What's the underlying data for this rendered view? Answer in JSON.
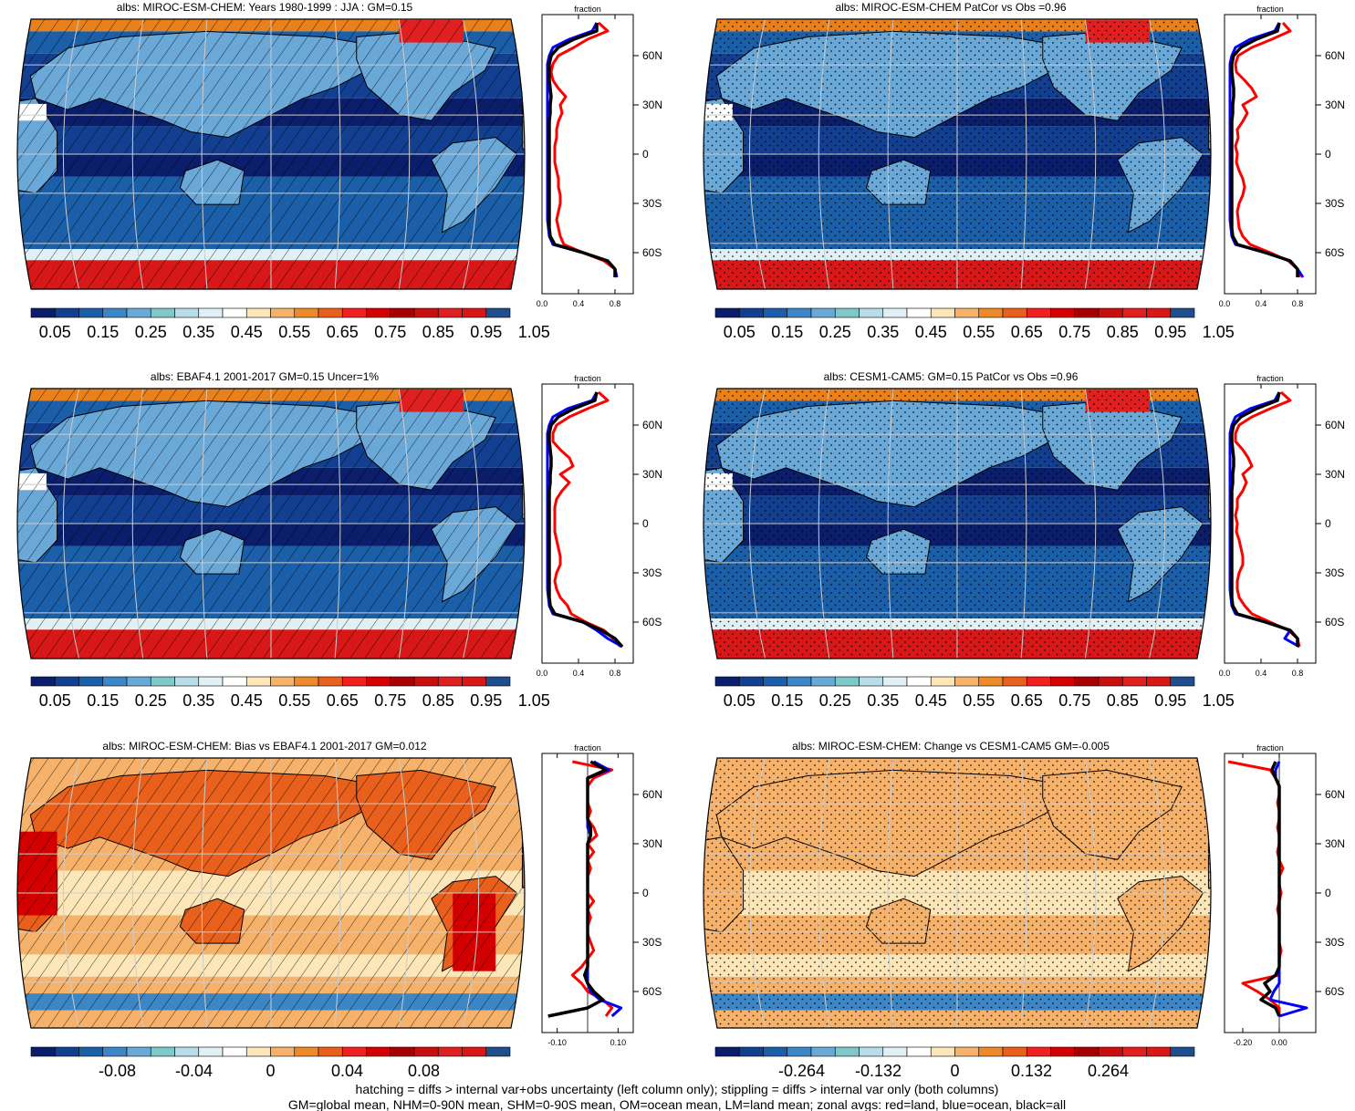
{
  "panels": [
    {
      "title": "albs: MIROC-ESM-CHEM: Years 1980-1999 : JJA : GM=0.15",
      "map_type": "albedo",
      "overlay": "hatch",
      "colorbar": {
        "type": "abs",
        "labels": [
          "0.05",
          "0.15",
          "0.25",
          "0.35",
          "0.45",
          "0.55",
          "0.65",
          "0.75",
          "0.85",
          "0.95",
          "1.05"
        ]
      }
    },
    {
      "title": "albs: MIROC-ESM-CHEM PatCor vs Obs =0.96",
      "map_type": "albedo",
      "overlay": "stipple",
      "colorbar": {
        "type": "abs",
        "labels": [
          "0.05",
          "0.15",
          "0.25",
          "0.35",
          "0.45",
          "0.55",
          "0.65",
          "0.75",
          "0.85",
          "0.95",
          "1.05"
        ]
      }
    },
    {
      "title": "albs: EBAF4.1 2001-2017 GM=0.15 Uncer=1%",
      "map_type": "albedo",
      "overlay": "hatch",
      "colorbar": {
        "type": "abs",
        "labels": [
          "0.05",
          "0.15",
          "0.25",
          "0.35",
          "0.45",
          "0.55",
          "0.65",
          "0.75",
          "0.85",
          "0.95",
          "1.05"
        ]
      }
    },
    {
      "title": "albs: CESM1-CAM5: GM=0.15 PatCor vs Obs =0.96",
      "map_type": "albedo",
      "overlay": "stipple",
      "colorbar": {
        "type": "abs",
        "labels": [
          "0.05",
          "0.15",
          "0.25",
          "0.35",
          "0.45",
          "0.55",
          "0.65",
          "0.75",
          "0.85",
          "0.95",
          "1.05"
        ]
      }
    },
    {
      "title": "albs: MIROC-ESM-CHEM: Bias vs EBAF4.1 2001-2017 GM=0.012",
      "map_type": "diff",
      "overlay": "hatch",
      "colorbar": {
        "type": "diff",
        "labels": [
          "-0.08",
          "-0.04",
          "0",
          "0.04",
          "0.08"
        ]
      }
    },
    {
      "title": "albs: MIROC-ESM-CHEM: Change vs CESM1-CAM5 GM=-0.005",
      "map_type": "diff",
      "overlay": "stipple",
      "colorbar": {
        "type": "diff",
        "labels": [
          "-0.264",
          "-0.132",
          "0",
          "0.132",
          "0.264"
        ]
      }
    }
  ],
  "latitude_labels": [
    "60N",
    "30N",
    "0",
    "30S",
    "60S"
  ],
  "zonal_axis_title": "fraction",
  "zonal_x_ticks": [
    [
      "0.0",
      "0.4",
      "0.8"
    ],
    [
      "0.0",
      "0.4",
      "0.8"
    ],
    [
      "0.0",
      "0.4",
      "0.8"
    ],
    [
      "0.0",
      "0.4",
      "0.8"
    ],
    [
      "-0.10",
      "0.10"
    ],
    [
      "-0.20",
      "0.00"
    ]
  ],
  "colors": {
    "land": "#ff0000",
    "ocean": "#0000ff",
    "all": "#000000",
    "abs_palette": [
      "#0b1e6b",
      "#123f8f",
      "#1a5fa8",
      "#3d86c6",
      "#6aa8d8",
      "#7ec8c8",
      "#b8dce8",
      "#e0f0f4",
      "#ffffff",
      "#fde6b8",
      "#f6b26b",
      "#ee8a2a",
      "#e8601c",
      "#f02020",
      "#d40000",
      "#a80000",
      "#c80e0e",
      "#e02020",
      "#d81818",
      "#1f4e8c"
    ],
    "diff_palette": [
      "#0b1e6b",
      "#123f8f",
      "#1a5fa8",
      "#3d86c6",
      "#6aa8d8",
      "#7ec8c8",
      "#b8dce8",
      "#e0f0f4",
      "#ffffff",
      "#fde6b8",
      "#f6b26b",
      "#ee8a2a",
      "#e8601c",
      "#f02020",
      "#d40000",
      "#a80000",
      "#c80e0e",
      "#e02020",
      "#d81818",
      "#1f4e8c"
    ]
  },
  "chart_data": [
    {
      "type": "line",
      "title": "fraction",
      "y_ticks": [
        "60N",
        "30N",
        "0",
        "30S",
        "60S"
      ],
      "x_ticks": [
        "0.0",
        "0.4",
        "0.8"
      ],
      "xlim": [
        0,
        1.0
      ],
      "lat": [
        80,
        75,
        70,
        65,
        60,
        55,
        50,
        45,
        40,
        35,
        30,
        25,
        20,
        15,
        10,
        5,
        0,
        -5,
        -10,
        -15,
        -20,
        -25,
        -30,
        -35,
        -40,
        -45,
        -50,
        -55,
        -60,
        -65,
        -70,
        -75
      ],
      "series": [
        {
          "name": "land",
          "values": [
            0.62,
            0.72,
            0.5,
            0.35,
            0.18,
            0.12,
            0.1,
            0.12,
            0.18,
            0.26,
            0.2,
            0.22,
            0.18,
            0.16,
            0.16,
            0.14,
            0.14,
            0.14,
            0.16,
            0.18,
            0.18,
            0.2,
            0.2,
            0.18,
            0.16,
            0.18,
            0.2,
            0.24,
            0.45,
            0.68,
            0.8,
            0.82
          ]
        },
        {
          "name": "ocean",
          "values": [
            0.6,
            0.55,
            0.3,
            0.12,
            0.08,
            0.06,
            0.06,
            0.06,
            0.06,
            0.06,
            0.06,
            0.06,
            0.06,
            0.06,
            0.06,
            0.06,
            0.06,
            0.06,
            0.06,
            0.06,
            0.06,
            0.06,
            0.06,
            0.06,
            0.06,
            0.07,
            0.08,
            0.12,
            0.45,
            0.72,
            0.8,
            0.82
          ]
        },
        {
          "name": "all",
          "values": [
            0.6,
            0.6,
            0.35,
            0.18,
            0.1,
            0.08,
            0.08,
            0.08,
            0.09,
            0.1,
            0.09,
            0.09,
            0.08,
            0.08,
            0.08,
            0.08,
            0.08,
            0.08,
            0.08,
            0.08,
            0.08,
            0.08,
            0.08,
            0.08,
            0.08,
            0.08,
            0.09,
            0.14,
            0.45,
            0.72,
            0.8,
            0.8
          ]
        }
      ]
    },
    {
      "type": "line",
      "title": "fraction",
      "y_ticks": [
        "60N",
        "30N",
        "0",
        "30S",
        "60S"
      ],
      "x_ticks": [
        "0.0",
        "0.4",
        "0.8"
      ],
      "xlim": [
        0,
        1.0
      ],
      "lat": [
        80,
        75,
        70,
        65,
        60,
        55,
        50,
        45,
        40,
        35,
        30,
        25,
        20,
        15,
        10,
        5,
        0,
        -5,
        -10,
        -15,
        -20,
        -25,
        -30,
        -35,
        -40,
        -45,
        -50,
        -55,
        -60,
        -65,
        -70,
        -75
      ],
      "series": [
        {
          "name": "land",
          "values": [
            0.64,
            0.72,
            0.52,
            0.3,
            0.15,
            0.12,
            0.13,
            0.22,
            0.3,
            0.35,
            0.2,
            0.25,
            0.2,
            0.14,
            0.15,
            0.12,
            0.14,
            0.13,
            0.16,
            0.2,
            0.22,
            0.2,
            0.16,
            0.14,
            0.15,
            0.16,
            0.2,
            0.28,
            0.5,
            0.7,
            0.8,
            0.82
          ]
        },
        {
          "name": "ocean",
          "values": [
            0.6,
            0.55,
            0.28,
            0.12,
            0.08,
            0.06,
            0.06,
            0.06,
            0.06,
            0.06,
            0.06,
            0.06,
            0.06,
            0.06,
            0.06,
            0.06,
            0.06,
            0.06,
            0.06,
            0.06,
            0.06,
            0.06,
            0.06,
            0.06,
            0.06,
            0.07,
            0.08,
            0.12,
            0.45,
            0.72,
            0.8,
            0.86
          ]
        },
        {
          "name": "all",
          "values": [
            0.6,
            0.58,
            0.35,
            0.18,
            0.1,
            0.08,
            0.08,
            0.09,
            0.1,
            0.1,
            0.09,
            0.09,
            0.08,
            0.08,
            0.08,
            0.08,
            0.08,
            0.08,
            0.08,
            0.08,
            0.08,
            0.08,
            0.08,
            0.08,
            0.08,
            0.08,
            0.09,
            0.14,
            0.45,
            0.72,
            0.8,
            0.8
          ]
        }
      ]
    },
    {
      "type": "line",
      "title": "fraction",
      "y_ticks": [
        "60N",
        "30N",
        "0",
        "30S",
        "60S"
      ],
      "x_ticks": [
        "0.0",
        "0.4",
        "0.8"
      ],
      "xlim": [
        0,
        1.0
      ],
      "lat": [
        80,
        75,
        70,
        65,
        60,
        55,
        50,
        45,
        40,
        35,
        30,
        25,
        20,
        15,
        10,
        5,
        0,
        -5,
        -10,
        -15,
        -20,
        -25,
        -30,
        -35,
        -40,
        -45,
        -50,
        -55,
        -60,
        -65,
        -70,
        -75
      ],
      "series": [
        {
          "name": "land",
          "values": [
            0.62,
            0.72,
            0.5,
            0.3,
            0.16,
            0.12,
            0.12,
            0.2,
            0.3,
            0.34,
            0.2,
            0.3,
            0.22,
            0.16,
            0.14,
            0.14,
            0.14,
            0.14,
            0.16,
            0.18,
            0.2,
            0.2,
            0.16,
            0.14,
            0.16,
            0.2,
            0.28,
            0.32,
            0.48,
            0.68,
            0.78,
            0.86
          ]
        },
        {
          "name": "ocean",
          "values": [
            0.6,
            0.55,
            0.28,
            0.12,
            0.08,
            0.06,
            0.06,
            0.06,
            0.06,
            0.06,
            0.06,
            0.06,
            0.06,
            0.06,
            0.06,
            0.06,
            0.06,
            0.06,
            0.06,
            0.06,
            0.06,
            0.06,
            0.06,
            0.06,
            0.06,
            0.07,
            0.08,
            0.12,
            0.45,
            0.6,
            0.72,
            0.88
          ]
        },
        {
          "name": "all",
          "values": [
            0.6,
            0.58,
            0.35,
            0.18,
            0.1,
            0.08,
            0.08,
            0.09,
            0.1,
            0.1,
            0.09,
            0.09,
            0.08,
            0.08,
            0.08,
            0.08,
            0.08,
            0.08,
            0.08,
            0.08,
            0.08,
            0.08,
            0.08,
            0.08,
            0.08,
            0.08,
            0.09,
            0.14,
            0.45,
            0.65,
            0.8,
            0.88
          ]
        }
      ]
    },
    {
      "type": "line",
      "title": "fraction",
      "y_ticks": [
        "60N",
        "30N",
        "0",
        "30S",
        "60S"
      ],
      "x_ticks": [
        "0.0",
        "0.4",
        "0.8"
      ],
      "xlim": [
        0,
        1.0
      ],
      "lat": [
        80,
        75,
        70,
        65,
        60,
        55,
        50,
        45,
        40,
        35,
        30,
        25,
        20,
        15,
        10,
        5,
        0,
        -5,
        -10,
        -15,
        -20,
        -25,
        -30,
        -35,
        -40,
        -45,
        -50,
        -55,
        -60,
        -65,
        -70,
        -75
      ],
      "series": [
        {
          "name": "land",
          "values": [
            0.62,
            0.72,
            0.5,
            0.3,
            0.16,
            0.12,
            0.12,
            0.2,
            0.26,
            0.3,
            0.2,
            0.24,
            0.2,
            0.14,
            0.14,
            0.12,
            0.14,
            0.13,
            0.16,
            0.18,
            0.2,
            0.2,
            0.16,
            0.14,
            0.14,
            0.16,
            0.22,
            0.3,
            0.5,
            0.7,
            0.8,
            0.82
          ]
        },
        {
          "name": "ocean",
          "values": [
            0.6,
            0.55,
            0.28,
            0.12,
            0.08,
            0.06,
            0.06,
            0.06,
            0.06,
            0.06,
            0.06,
            0.06,
            0.06,
            0.06,
            0.06,
            0.06,
            0.06,
            0.06,
            0.06,
            0.06,
            0.06,
            0.06,
            0.06,
            0.06,
            0.06,
            0.07,
            0.08,
            0.12,
            0.45,
            0.72,
            0.66,
            0.82
          ]
        },
        {
          "name": "all",
          "values": [
            0.6,
            0.58,
            0.35,
            0.18,
            0.1,
            0.08,
            0.08,
            0.09,
            0.1,
            0.1,
            0.09,
            0.09,
            0.08,
            0.08,
            0.08,
            0.08,
            0.08,
            0.08,
            0.08,
            0.08,
            0.08,
            0.08,
            0.08,
            0.08,
            0.08,
            0.08,
            0.09,
            0.14,
            0.45,
            0.72,
            0.8,
            0.8
          ]
        }
      ]
    },
    {
      "type": "line",
      "title": "fraction",
      "y_ticks": [
        "60N",
        "30N",
        "0",
        "30S",
        "60S"
      ],
      "x_ticks": [
        "-0.10",
        "0.10"
      ],
      "xlim": [
        -0.15,
        0.15
      ],
      "lat": [
        80,
        75,
        70,
        65,
        60,
        55,
        50,
        45,
        40,
        35,
        30,
        25,
        20,
        15,
        10,
        5,
        0,
        -5,
        -10,
        -15,
        -20,
        -25,
        -30,
        -35,
        -40,
        -45,
        -50,
        -55,
        -60,
        -65,
        -70,
        -75
      ],
      "series": [
        {
          "name": "land",
          "values": [
            -0.05,
            0.08,
            0.02,
            0.0,
            0.0,
            0.0,
            0.01,
            0.0,
            0.02,
            0.03,
            0.0,
            0.02,
            0.0,
            0.01,
            0.0,
            0.0,
            0.0,
            0.02,
            0.0,
            0.01,
            0.0,
            0.0,
            0.01,
            0.02,
            0.0,
            -0.02,
            -0.05,
            -0.02,
            0.0,
            0.05,
            0.08,
            0.06
          ]
        },
        {
          "name": "ocean",
          "values": [
            0.02,
            0.07,
            0.0,
            0.0,
            0.0,
            0.0,
            0.0,
            0.0,
            0.0,
            0.01,
            0.0,
            0.0,
            0.0,
            0.0,
            0.0,
            0.0,
            0.0,
            0.0,
            0.0,
            0.0,
            0.0,
            0.0,
            0.0,
            0.0,
            0.0,
            0.0,
            0.0,
            0.0,
            0.01,
            0.04,
            0.11,
            0.08
          ]
        },
        {
          "name": "all",
          "values": [
            0.01,
            0.06,
            0.0,
            0.0,
            0.0,
            0.0,
            0.0,
            0.0,
            0.01,
            0.01,
            0.0,
            0.0,
            0.0,
            0.0,
            0.0,
            0.0,
            0.0,
            0.0,
            0.0,
            0.0,
            0.0,
            0.0,
            0.0,
            0.0,
            0.0,
            0.0,
            -0.01,
            0.0,
            0.02,
            0.05,
            0.0,
            -0.13
          ]
        }
      ]
    },
    {
      "type": "line",
      "title": "fraction",
      "y_ticks": [
        "60N",
        "30N",
        "0",
        "30S",
        "60S"
      ],
      "x_ticks": [
        "-0.20",
        "0.00"
      ],
      "xlim": [
        -0.3,
        0.2
      ],
      "lat": [
        80,
        75,
        70,
        65,
        60,
        55,
        50,
        45,
        40,
        35,
        30,
        25,
        20,
        15,
        10,
        5,
        0,
        -5,
        -10,
        -15,
        -20,
        -25,
        -30,
        -35,
        -40,
        -45,
        -50,
        -55,
        -60,
        -65,
        -70,
        -75
      ],
      "series": [
        {
          "name": "land",
          "values": [
            -0.28,
            -0.05,
            -0.02,
            0.0,
            0.0,
            -0.01,
            0.0,
            0.0,
            -0.01,
            0.0,
            0.0,
            -0.01,
            0.0,
            0.02,
            0.0,
            0.0,
            0.01,
            0.0,
            -0.01,
            0.0,
            0.0,
            0.0,
            0.0,
            0.01,
            0.0,
            0.0,
            0.0,
            -0.2,
            -0.12,
            -0.05,
            0.0,
            0.0
          ]
        },
        {
          "name": "ocean",
          "values": [
            0.0,
            -0.02,
            -0.02,
            0.0,
            0.0,
            0.0,
            0.0,
            0.0,
            0.0,
            0.0,
            0.0,
            0.0,
            0.0,
            0.0,
            0.0,
            0.0,
            0.0,
            0.0,
            0.0,
            0.0,
            0.0,
            0.0,
            0.0,
            0.0,
            0.0,
            0.0,
            0.0,
            0.0,
            -0.03,
            -0.05,
            0.15,
            0.0
          ]
        },
        {
          "name": "all",
          "values": [
            -0.02,
            -0.04,
            -0.02,
            0.0,
            0.0,
            0.0,
            0.0,
            0.0,
            0.0,
            0.0,
            0.0,
            0.0,
            0.0,
            0.0,
            0.0,
            0.0,
            0.0,
            0.0,
            0.0,
            0.0,
            0.0,
            0.0,
            0.0,
            0.0,
            0.0,
            0.0,
            -0.02,
            -0.08,
            -0.05,
            -0.1,
            -0.02,
            0.0
          ]
        }
      ]
    }
  ],
  "footer": {
    "line1": "hatching = diffs > internal var+obs uncertainty (left column only); stippling = diffs > internal var only (both columns)",
    "line2": "GM=global mean, NHM=0-90N mean, SHM=0-90S mean, OM=ocean mean, LM=land mean; zonal avgs: red=land, blue=ocean, black=all"
  }
}
